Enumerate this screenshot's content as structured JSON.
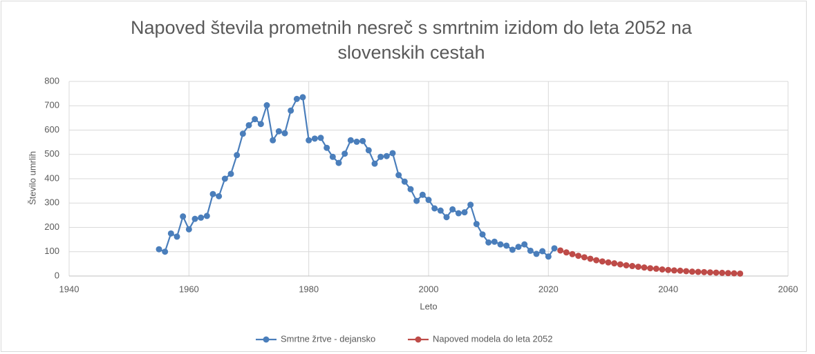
{
  "chart_data": {
    "type": "line",
    "title": "Napoved števila prometnih nesreč s smrtnim izidom do leta 2052 na slovenskih cestah",
    "xlabel": "Leto",
    "ylabel": "Število umrlih",
    "xlim": [
      1940,
      2060
    ],
    "xticks": [
      1940,
      1960,
      1980,
      2000,
      2020,
      2040,
      2060
    ],
    "ylim": [
      0,
      800
    ],
    "yticks": [
      0,
      100,
      200,
      300,
      400,
      500,
      600,
      700,
      800
    ],
    "grid": true,
    "legend": "bottom",
    "series": [
      {
        "name": "Smrtne žrtve - dejansko",
        "color": "#4a7ebb",
        "x": [
          1955,
          1956,
          1957,
          1958,
          1959,
          1960,
          1961,
          1962,
          1963,
          1964,
          1965,
          1966,
          1967,
          1968,
          1969,
          1970,
          1971,
          1972,
          1973,
          1974,
          1975,
          1976,
          1977,
          1978,
          1979,
          1980,
          1981,
          1982,
          1983,
          1984,
          1985,
          1986,
          1987,
          1988,
          1989,
          1990,
          1991,
          1992,
          1993,
          1994,
          1995,
          1996,
          1997,
          1998,
          1999,
          2000,
          2001,
          2002,
          2003,
          2004,
          2005,
          2006,
          2007,
          2008,
          2009,
          2010,
          2011,
          2012,
          2013,
          2014,
          2015,
          2016,
          2017,
          2018,
          2019,
          2020,
          2021
        ],
        "values": [
          110,
          100,
          175,
          162,
          245,
          192,
          235,
          240,
          247,
          337,
          328,
          400,
          420,
          497,
          585,
          620,
          645,
          625,
          702,
          558,
          595,
          587,
          680,
          728,
          735,
          558,
          565,
          568,
          527,
          490,
          465,
          503,
          558,
          552,
          555,
          517,
          462,
          490,
          493,
          505,
          415,
          388,
          357,
          309,
          334,
          313,
          278,
          269,
          242,
          274,
          258,
          262,
          293,
          214,
          171,
          138,
          141,
          130,
          125,
          108,
          120,
          130,
          104,
          91,
          102,
          80,
          114
        ]
      },
      {
        "name": "Napoved modela do leta 2052",
        "color": "#be4b48",
        "x": [
          2022,
          2023,
          2024,
          2025,
          2026,
          2027,
          2028,
          2029,
          2030,
          2031,
          2032,
          2033,
          2034,
          2035,
          2036,
          2037,
          2038,
          2039,
          2040,
          2041,
          2042,
          2043,
          2044,
          2045,
          2046,
          2047,
          2048,
          2049,
          2050,
          2051,
          2052
        ],
        "values": [
          105,
          97,
          90,
          83,
          77,
          71,
          65,
          60,
          56,
          52,
          48,
          44,
          41,
          38,
          35,
          32,
          30,
          27,
          25,
          23,
          22,
          20,
          18,
          17,
          16,
          15,
          14,
          13,
          12,
          11,
          10
        ]
      }
    ]
  }
}
